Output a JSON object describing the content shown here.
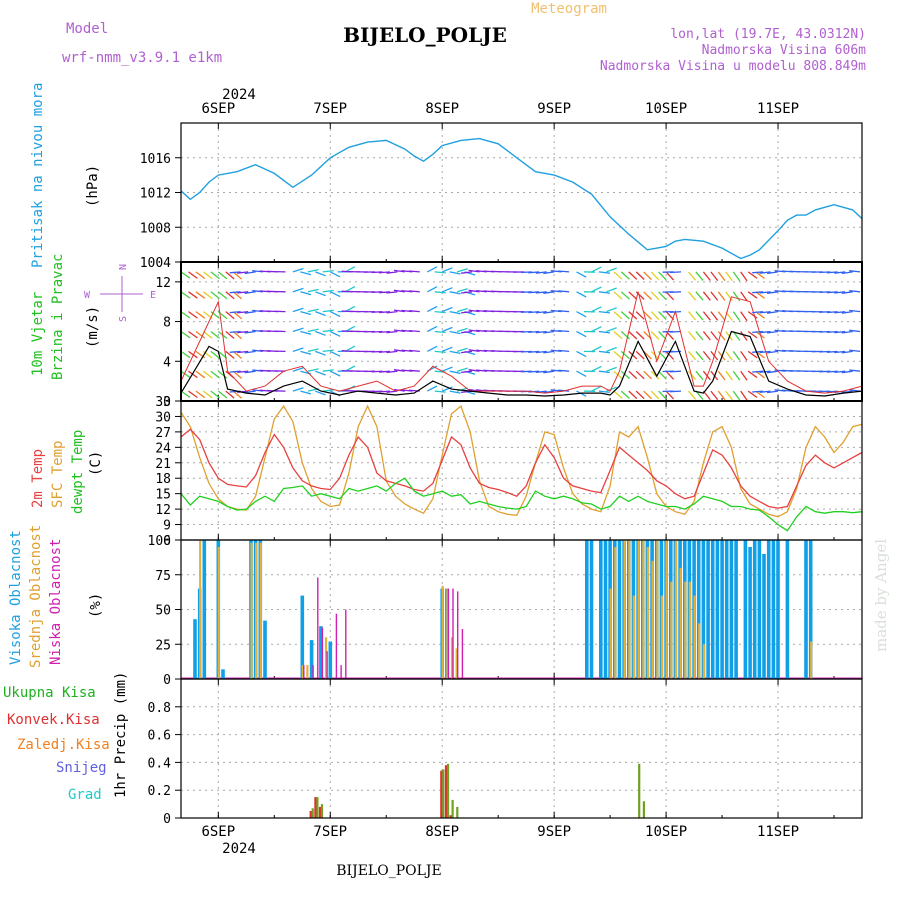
{
  "header": {
    "model_label": "Model",
    "model_name": "wrf-nmm_v3.9.1  e1km",
    "title": "BIJELO_POLJE",
    "meteogram": "Meteogram",
    "lonlat": "lon,lat (19.7E, 43.0312N)",
    "altitude": "Nadmorska Visina 606m",
    "model_altitude": "Nadmorska Visina u modelu 808.849m",
    "footer_title": "BIJELO_POLJE",
    "watermark": "made by Angel"
  },
  "time_axis": {
    "year": "2024",
    "days": [
      "6SEP",
      "7SEP",
      "8SEP",
      "9SEP",
      "10SEP",
      "11SEP"
    ],
    "start_hour_before_first_tick": 8,
    "total_hours": 146
  },
  "colors": {
    "pressure": "#1fa0e0",
    "temp2m": "#e84040",
    "sfc": "#e0a030",
    "dewpt": "#20d020",
    "high": "#10a0e8",
    "mid": "#e0b040",
    "low": "#d020b0",
    "total_precip": "#20b020",
    "conv": "#e03030",
    "frozen": "#f08020",
    "snow": "#6060e0",
    "grad": "#20c8c8",
    "wind_speed": "#000000",
    "wind_gust": "#e03030"
  },
  "panels": {
    "pressure": {
      "label1": "Pritisak na nivou mora",
      "unit": "(hPa)",
      "ticks": [
        "1004",
        "1008",
        "1012",
        "1016"
      ]
    },
    "wind": {
      "label1": "10m Vjetar",
      "label2": "Brzina i Pravac",
      "unit": "(m/s)",
      "ticks": [
        "0",
        "4",
        "8",
        "12"
      ],
      "compass_n": "N",
      "compass_w": "W",
      "compass_e": "E",
      "compass_s": "S"
    },
    "temp": {
      "label1": "2m Temp",
      "label2": "SFC Temp",
      "label3": "dewpt Temp",
      "unit": "(C)",
      "ticks": [
        "6",
        "9",
        "12",
        "15",
        "18",
        "21",
        "24",
        "27",
        "30",
        "33"
      ]
    },
    "cloud": {
      "label1": "Visoka Oblacnost",
      "label2": "Srednja Oblacnost",
      "label3": "Niska Oblacnost",
      "unit": "(%)",
      "ticks": [
        "0",
        "25",
        "50",
        "75",
        "100"
      ]
    },
    "precip": {
      "labels": [
        "Ukupna Kisa",
        "Konvek.Kisa",
        "Zaledj.Kisa",
        "Snijeg",
        "Grad"
      ],
      "unit": "1hr Precip (mm)",
      "ticks": [
        "0",
        "0.2",
        "0.4",
        "0.6",
        "0.8"
      ]
    }
  },
  "chart_data": [
    {
      "type": "line",
      "name": "pressure",
      "x_hours": [
        0,
        2,
        4,
        6,
        8,
        12,
        16,
        20,
        24,
        28,
        32,
        36,
        40,
        44,
        48,
        50,
        52,
        54,
        56,
        60,
        64,
        68,
        72,
        76,
        80,
        84,
        88,
        92,
        96,
        100,
        104,
        106,
        108,
        112,
        116,
        120,
        122,
        124,
        128,
        130,
        132,
        134,
        136,
        140,
        144,
        146
      ],
      "values": [
        1012.2,
        1011.2,
        1012.0,
        1013.2,
        1014.0,
        1014.4,
        1015.2,
        1014.2,
        1012.6,
        1014.0,
        1016.0,
        1017.2,
        1017.8,
        1018.0,
        1017.0,
        1016.2,
        1015.6,
        1016.4,
        1017.4,
        1018.0,
        1018.2,
        1017.6,
        1016.0,
        1014.4,
        1014.0,
        1013.2,
        1011.8,
        1009.2,
        1007.2,
        1005.4,
        1005.8,
        1006.4,
        1006.6,
        1006.4,
        1005.6,
        1004.4,
        1004.8,
        1005.4,
        1007.6,
        1008.8,
        1009.4,
        1009.4,
        1010.0,
        1010.6,
        1010.0,
        1009.0
      ],
      "ylim": [
        1004,
        1020
      ]
    },
    {
      "type": "line",
      "name": "wind",
      "x_hours": [
        0,
        6,
        8,
        10,
        14,
        18,
        22,
        26,
        30,
        34,
        38,
        42,
        46,
        50,
        54,
        58,
        62,
        66,
        70,
        74,
        78,
        82,
        86,
        90,
        92,
        94,
        98,
        102,
        106,
        110,
        112,
        114,
        118,
        122,
        126,
        130,
        134,
        138,
        142,
        146
      ],
      "speed": [
        0.8,
        5.5,
        5.0,
        1.2,
        0.8,
        0.6,
        1.5,
        2.0,
        1.0,
        0.6,
        1.0,
        0.8,
        0.6,
        0.8,
        2.0,
        1.2,
        1.0,
        0.8,
        0.6,
        0.6,
        0.5,
        0.6,
        0.8,
        0.8,
        0.6,
        1.5,
        6.0,
        2.5,
        6.0,
        1.0,
        0.8,
        2.0,
        7.0,
        6.5,
        2.0,
        1.2,
        0.6,
        0.5,
        0.8,
        1.0
      ],
      "gust": [
        2.0,
        8.0,
        10.0,
        3.0,
        1.0,
        1.5,
        3.0,
        3.5,
        1.5,
        1.0,
        1.5,
        2.0,
        1.0,
        1.5,
        3.5,
        2.5,
        1.0,
        1.0,
        1.0,
        1.0,
        0.8,
        1.0,
        1.5,
        1.5,
        1.0,
        3.0,
        11.0,
        4.0,
        9.0,
        1.5,
        1.5,
        4.0,
        10.5,
        10.0,
        4.0,
        2.0,
        1.0,
        0.8,
        1.0,
        1.5
      ],
      "ylim": [
        0,
        14
      ]
    },
    {
      "type": "line",
      "name": "temperature",
      "x_hours": [
        0,
        2,
        4,
        6,
        8,
        10,
        12,
        14,
        16,
        18,
        20,
        22,
        24,
        26,
        28,
        30,
        32,
        34,
        36,
        38,
        40,
        42,
        44,
        46,
        48,
        50,
        52,
        54,
        56,
        58,
        60,
        62,
        64,
        66,
        68,
        70,
        72,
        74,
        76,
        78,
        80,
        82,
        84,
        86,
        88,
        90,
        92,
        94,
        96,
        98,
        100,
        102,
        104,
        106,
        108,
        110,
        112,
        114,
        116,
        118,
        120,
        122,
        124,
        126,
        128,
        130,
        132,
        134,
        136,
        138,
        140,
        142,
        144,
        146
      ],
      "t2m": [
        26.0,
        27.5,
        25.5,
        21.0,
        18.0,
        16.8,
        16.5,
        16.3,
        18.5,
        23.0,
        26.5,
        24.0,
        20.0,
        17.5,
        16.5,
        16.0,
        15.8,
        18.0,
        22.5,
        26.0,
        24.0,
        19.0,
        17.5,
        17.0,
        16.5,
        15.8,
        15.5,
        17.0,
        21.5,
        26.0,
        24.5,
        20.0,
        17.0,
        16.2,
        15.8,
        15.2,
        14.5,
        16.5,
        21.0,
        24.5,
        22.0,
        18.0,
        16.5,
        16.0,
        15.5,
        15.2,
        19.5,
        24.0,
        22.5,
        21.0,
        19.5,
        17.5,
        16.5,
        15.0,
        14.0,
        14.5,
        19.0,
        23.5,
        22.5,
        20.0,
        16.5,
        14.5,
        13.5,
        12.5,
        12.2,
        12.5,
        16.5,
        20.5,
        22.5,
        21.0,
        20.0,
        21.0,
        22.0,
        23.0
      ],
      "sfc": [
        30.8,
        28.0,
        22.0,
        17.0,
        14.0,
        12.5,
        12.0,
        11.8,
        14.5,
        22.0,
        29.5,
        32.0,
        29.0,
        21.0,
        16.0,
        13.5,
        12.5,
        12.8,
        19.0,
        28.0,
        32.0,
        28.0,
        17.5,
        14.5,
        13.0,
        12.0,
        11.2,
        14.0,
        22.5,
        30.5,
        32.0,
        27.0,
        17.5,
        12.5,
        11.5,
        11.0,
        10.8,
        14.5,
        21.0,
        27.0,
        26.5,
        20.0,
        15.0,
        13.0,
        12.0,
        11.5,
        16.5,
        27.0,
        26.0,
        28.0,
        22.0,
        15.0,
        12.5,
        11.5,
        11.0,
        13.5,
        21.0,
        27.0,
        28.0,
        24.0,
        16.0,
        13.0,
        12.0,
        11.0,
        10.5,
        11.5,
        16.0,
        24.0,
        28.0,
        26.0,
        23.0,
        25.0,
        28.0,
        28.5
      ],
      "dewpt": [
        15.0,
        12.8,
        14.5,
        14.0,
        13.5,
        12.5,
        11.8,
        12.0,
        13.5,
        14.5,
        13.5,
        16.0,
        16.2,
        16.5,
        14.5,
        15.0,
        14.5,
        14.0,
        16.0,
        15.5,
        16.0,
        16.5,
        15.5,
        17.0,
        18.0,
        15.5,
        14.5,
        15.0,
        15.5,
        14.5,
        14.8,
        13.0,
        13.5,
        13.0,
        12.5,
        12.2,
        12.0,
        12.5,
        15.5,
        14.5,
        14.0,
        14.5,
        14.0,
        13.2,
        13.0,
        12.0,
        12.5,
        14.5,
        13.5,
        14.5,
        13.5,
        13.0,
        12.5,
        12.5,
        12.0,
        13.0,
        14.5,
        14.0,
        13.5,
        12.5,
        12.5,
        12.0,
        11.8,
        10.5,
        9.0,
        7.8,
        10.5,
        12.5,
        11.5,
        11.2,
        11.5,
        11.5,
        11.3,
        11.5
      ],
      "ylim": [
        6,
        33
      ]
    },
    {
      "type": "bar",
      "name": "cloud_cover",
      "high": [
        [
          3,
          43
        ],
        [
          4,
          65
        ],
        [
          5,
          100
        ],
        [
          8,
          100
        ],
        [
          9,
          7
        ],
        [
          15,
          100
        ],
        [
          16,
          100
        ],
        [
          17,
          100
        ],
        [
          18,
          42
        ],
        [
          26,
          60
        ],
        [
          28,
          28
        ],
        [
          30,
          38
        ],
        [
          32,
          27
        ],
        [
          56,
          65
        ],
        [
          57,
          65
        ],
        [
          87,
          100
        ],
        [
          88,
          100
        ],
        [
          90,
          100
        ],
        [
          91,
          100
        ],
        [
          92,
          100
        ],
        [
          93,
          100
        ],
        [
          94,
          100
        ],
        [
          95,
          100
        ],
        [
          96,
          100
        ],
        [
          97,
          100
        ],
        [
          98,
          100
        ],
        [
          99,
          100
        ],
        [
          100,
          100
        ],
        [
          101,
          100
        ],
        [
          102,
          100
        ],
        [
          103,
          100
        ],
        [
          104,
          100
        ],
        [
          105,
          100
        ],
        [
          106,
          100
        ],
        [
          107,
          100
        ],
        [
          108,
          100
        ],
        [
          109,
          100
        ],
        [
          110,
          100
        ],
        [
          111,
          100
        ],
        [
          112,
          100
        ],
        [
          113,
          100
        ],
        [
          114,
          100
        ],
        [
          115,
          100
        ],
        [
          116,
          100
        ],
        [
          117,
          100
        ],
        [
          118,
          100
        ],
        [
          119,
          100
        ],
        [
          121,
          100
        ],
        [
          122,
          95
        ],
        [
          123,
          100
        ],
        [
          124,
          100
        ],
        [
          125,
          90
        ],
        [
          126,
          100
        ],
        [
          127,
          100
        ],
        [
          128,
          100
        ],
        [
          130,
          100
        ],
        [
          134,
          100
        ],
        [
          135,
          100
        ]
      ],
      "mid": [
        [
          4,
          100
        ],
        [
          8,
          95
        ],
        [
          15,
          98
        ],
        [
          16,
          98
        ],
        [
          17,
          98
        ],
        [
          26,
          10
        ],
        [
          27,
          10
        ],
        [
          31,
          30
        ],
        [
          56,
          67
        ],
        [
          57,
          65
        ],
        [
          58,
          30
        ],
        [
          59,
          22
        ],
        [
          92,
          65
        ],
        [
          93,
          95
        ],
        [
          95,
          100
        ],
        [
          96,
          100
        ],
        [
          97,
          60
        ],
        [
          98,
          100
        ],
        [
          99,
          100
        ],
        [
          100,
          95
        ],
        [
          101,
          85
        ],
        [
          102,
          100
        ],
        [
          103,
          60
        ],
        [
          104,
          100
        ],
        [
          105,
          70
        ],
        [
          106,
          100
        ],
        [
          107,
          80
        ],
        [
          108,
          70
        ],
        [
          109,
          70
        ],
        [
          110,
          60
        ],
        [
          111,
          40
        ],
        [
          112,
          25
        ],
        [
          135,
          27
        ]
      ],
      "low": [
        [
          26,
          10
        ],
        [
          28,
          10
        ],
        [
          29,
          73
        ],
        [
          30,
          37
        ],
        [
          31,
          20
        ],
        [
          33,
          47
        ],
        [
          34,
          10
        ],
        [
          35,
          50
        ],
        [
          57,
          65
        ],
        [
          58,
          65
        ],
        [
          59,
          63
        ],
        [
          60,
          36
        ]
      ],
      "ylim": [
        0,
        100
      ]
    },
    {
      "type": "bar",
      "name": "precip_1h",
      "total": [
        [
          28,
          0.07
        ],
        [
          29,
          0.15
        ],
        [
          30,
          0.1
        ],
        [
          56,
          0.35
        ],
        [
          57,
          0.39
        ],
        [
          58,
          0.13
        ],
        [
          59,
          0.08
        ],
        [
          98,
          0.39
        ],
        [
          99,
          0.12
        ]
      ],
      "conv": [
        [
          28,
          0.05
        ],
        [
          29,
          0.15
        ],
        [
          30,
          0.08
        ],
        [
          56,
          0.34
        ],
        [
          57,
          0.38
        ],
        [
          58,
          0.02
        ]
      ],
      "ylim": [
        0,
        1.0
      ]
    }
  ]
}
